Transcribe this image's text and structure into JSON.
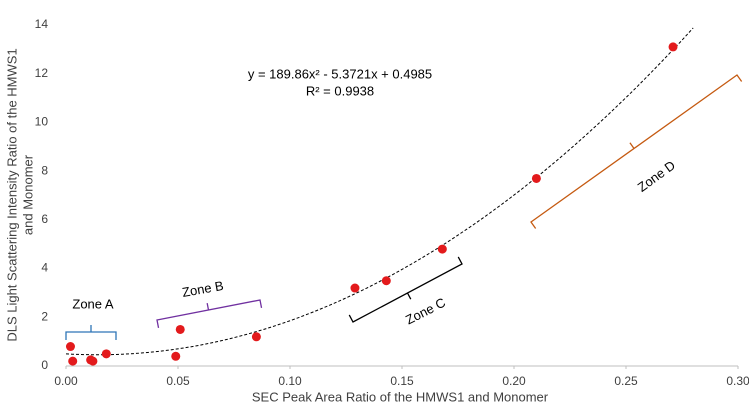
{
  "chart_data": {
    "type": "scatter",
    "xlabel": "SEC Peak Area Ratio of the HMWS1 and Monomer",
    "ylabel": [
      "DLS Light Scattering Intensity Ratio of the HMWS1",
      "and Monomer"
    ],
    "x": [
      0.002,
      0.003,
      0.011,
      0.012,
      0.018,
      0.049,
      0.051,
      0.085,
      0.129,
      0.143,
      0.168,
      0.21,
      0.271
    ],
    "series": [
      {
        "color": "#e31a1c",
        "values": [
          0.8,
          0.2,
          0.25,
          0.2,
          0.5,
          0.4,
          1.5,
          1.2,
          3.2,
          3.5,
          4.8,
          7.7,
          13.1
        ]
      }
    ],
    "xlim": [
      0,
      0.3
    ],
    "ylim": [
      0,
      14
    ],
    "xticks": [
      {
        "value": 0,
        "label": "0.00"
      },
      {
        "value": 0.05,
        "label": "0.05"
      },
      {
        "value": 0.1,
        "label": "0.10"
      },
      {
        "value": 0.15,
        "label": "0.15"
      },
      {
        "value": 0.2,
        "label": "0.20"
      },
      {
        "value": 0.25,
        "label": "0.25"
      },
      {
        "value": 0.3,
        "label": "0.30"
      }
    ],
    "yticks": [
      0,
      2,
      4,
      6,
      8,
      10,
      12,
      14
    ],
    "grid": false,
    "trendline": {
      "coefficients": [
        189.86,
        -5.3721,
        0.4985
      ],
      "x_range": [
        0,
        0.28
      ],
      "color": "#000000",
      "equation": "y = 189.86x² - 5.3721x + 0.4985",
      "r_squared": "R² = 0.9938"
    },
    "zones": [
      {
        "label": "Zone A",
        "color": "#2e75b6"
      },
      {
        "label": "Zone B",
        "color": "#7030a0"
      },
      {
        "label": "Zone C",
        "color": "#000000"
      },
      {
        "label": "Zone D",
        "color": "#c55a11"
      }
    ]
  }
}
